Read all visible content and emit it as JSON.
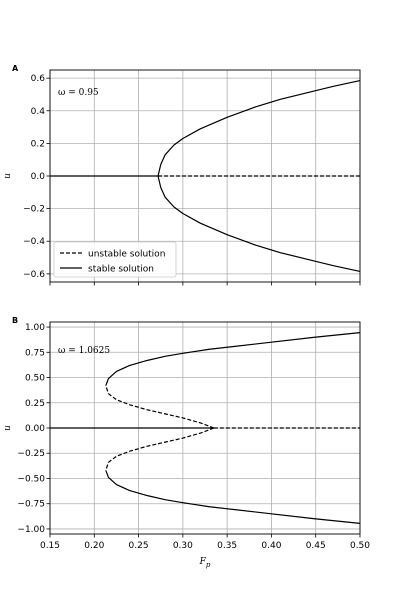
{
  "chart_data": [
    {
      "type": "line",
      "panel_label": "A",
      "annotation": "ω = 0.95",
      "ylabel": "u",
      "xlabel": "",
      "xlim": [
        0.15,
        0.5
      ],
      "ylim": [
        -0.65,
        0.65
      ],
      "yticks": [
        -0.6,
        -0.4,
        -0.2,
        0.0,
        0.2,
        0.4,
        0.6
      ],
      "ytick_labels": [
        "−0.6",
        "−0.4",
        "−0.2",
        "0.0",
        "0.2",
        "0.4",
        "0.6"
      ],
      "grid": true,
      "legend": {
        "placement": "lower-left",
        "entries": [
          {
            "label": "unstable solution",
            "style": "dashed"
          },
          {
            "label": "stable solution",
            "style": "solid"
          }
        ]
      },
      "series": [
        {
          "style": "solid",
          "x": [
            0.15,
            0.272
          ],
          "y": [
            0.0,
            0.0
          ]
        },
        {
          "style": "dashed",
          "x": [
            0.272,
            0.5
          ],
          "y": [
            0.0,
            0.0
          ]
        },
        {
          "style": "solid",
          "x": [
            0.272,
            0.275,
            0.28,
            0.29,
            0.3,
            0.32,
            0.35,
            0.38,
            0.41,
            0.44,
            0.47,
            0.5
          ],
          "y": [
            0.0,
            0.07,
            0.13,
            0.19,
            0.23,
            0.29,
            0.36,
            0.42,
            0.47,
            0.51,
            0.55,
            0.585
          ]
        },
        {
          "style": "solid",
          "x": [
            0.272,
            0.275,
            0.28,
            0.29,
            0.3,
            0.32,
            0.35,
            0.38,
            0.41,
            0.44,
            0.47,
            0.5
          ],
          "y": [
            0.0,
            -0.07,
            -0.13,
            -0.19,
            -0.23,
            -0.29,
            -0.36,
            -0.42,
            -0.47,
            -0.51,
            -0.55,
            -0.585
          ]
        }
      ]
    },
    {
      "type": "line",
      "panel_label": "B",
      "annotation": "ω = 1.0625",
      "ylabel": "u",
      "xlabel": "F_p",
      "xlim": [
        0.15,
        0.5
      ],
      "ylim": [
        -1.05,
        1.05
      ],
      "yticks": [
        -1.0,
        -0.75,
        -0.5,
        -0.25,
        0.0,
        0.25,
        0.5,
        0.75,
        1.0
      ],
      "ytick_labels": [
        "−1.00",
        "−0.75",
        "−0.50",
        "−0.25",
        "0.00",
        "0.25",
        "0.50",
        "0.75",
        "1.00"
      ],
      "xticks": [
        0.15,
        0.2,
        0.25,
        0.3,
        0.35,
        0.4,
        0.45,
        0.5
      ],
      "xtick_labels": [
        "0.15",
        "0.20",
        "0.25",
        "0.30",
        "0.35",
        "0.40",
        "0.45",
        "0.50"
      ],
      "grid": true,
      "series": [
        {
          "style": "solid",
          "x": [
            0.15,
            0.335
          ],
          "y": [
            0.0,
            0.0
          ]
        },
        {
          "style": "dashed",
          "x": [
            0.335,
            0.5
          ],
          "y": [
            0.0,
            0.0
          ]
        },
        {
          "style": "dashed",
          "x": [
            0.335,
            0.32,
            0.3,
            0.28,
            0.26,
            0.24,
            0.225,
            0.216,
            0.213
          ],
          "y": [
            0.0,
            0.05,
            0.1,
            0.14,
            0.18,
            0.23,
            0.28,
            0.34,
            0.42
          ]
        },
        {
          "style": "dashed",
          "x": [
            0.335,
            0.32,
            0.3,
            0.28,
            0.26,
            0.24,
            0.225,
            0.216,
            0.213
          ],
          "y": [
            0.0,
            -0.05,
            -0.1,
            -0.14,
            -0.18,
            -0.23,
            -0.28,
            -0.34,
            -0.42
          ]
        },
        {
          "style": "solid",
          "x": [
            0.213,
            0.216,
            0.225,
            0.24,
            0.26,
            0.28,
            0.3,
            0.33,
            0.36,
            0.4,
            0.45,
            0.5
          ],
          "y": [
            0.42,
            0.49,
            0.56,
            0.62,
            0.67,
            0.71,
            0.74,
            0.78,
            0.81,
            0.85,
            0.9,
            0.945
          ]
        },
        {
          "style": "solid",
          "x": [
            0.213,
            0.216,
            0.225,
            0.24,
            0.26,
            0.28,
            0.3,
            0.33,
            0.36,
            0.4,
            0.45,
            0.5
          ],
          "y": [
            -0.42,
            -0.49,
            -0.56,
            -0.62,
            -0.67,
            -0.71,
            -0.74,
            -0.78,
            -0.81,
            -0.85,
            -0.9,
            -0.945
          ]
        }
      ]
    }
  ]
}
